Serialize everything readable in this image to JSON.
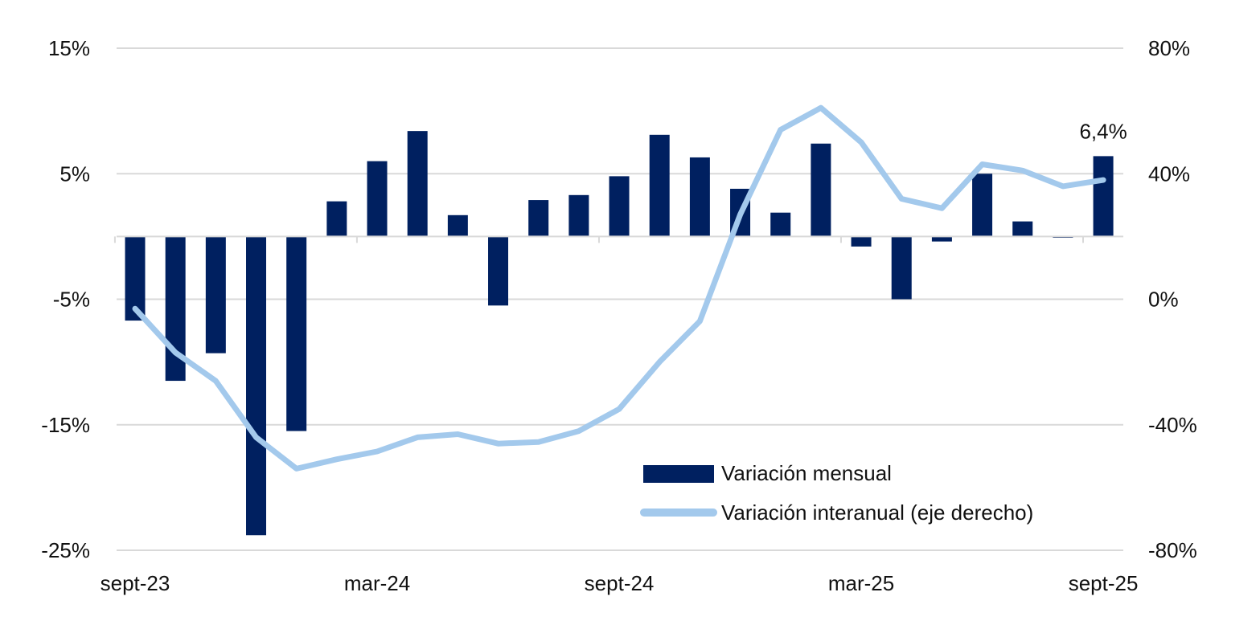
{
  "chart_data": {
    "type": "bar",
    "title": "",
    "xlabel": "",
    "ylabel": "",
    "y_left_ticks": [
      "15%",
      "5%",
      "-5%",
      "-15%",
      "-25%"
    ],
    "y_left_tick_values": [
      15,
      5,
      -5,
      -15,
      -25
    ],
    "y_left_range": [
      -25,
      15
    ],
    "y_right_ticks": [
      "80%",
      "40%",
      "0%",
      "-40%",
      "-80%"
    ],
    "y_right_tick_values": [
      80,
      40,
      0,
      -40,
      -80
    ],
    "y_right_range": [
      -80,
      80
    ],
    "x_tick_labels": [
      {
        "index": 0,
        "label": "sept-23"
      },
      {
        "index": 6,
        "label": "mar-24"
      },
      {
        "index": 12,
        "label": "sept-24"
      },
      {
        "index": 18,
        "label": "mar-25"
      },
      {
        "index": 24,
        "label": "sept-25"
      }
    ],
    "categories": [
      "sept-23",
      "oct-23",
      "nov-23",
      "dic-23",
      "ene-24",
      "feb-24",
      "mar-24",
      "abr-24",
      "may-24",
      "jun-24",
      "jul-24",
      "ago-24",
      "sept-24",
      "oct-24",
      "nov-24",
      "dic-24",
      "ene-25",
      "feb-25",
      "mar-25",
      "abr-25",
      "may-25",
      "jun-25",
      "jul-25",
      "ago-25",
      "sept-25"
    ],
    "series": [
      {
        "name": "Variación mensual",
        "kind": "bar",
        "axis": "left",
        "color": "#002060",
        "values": [
          -6.7,
          -11.5,
          -9.3,
          -23.8,
          -15.5,
          2.8,
          6.0,
          8.4,
          1.7,
          -5.5,
          2.9,
          3.3,
          4.8,
          8.1,
          6.3,
          3.8,
          1.9,
          7.4,
          -0.8,
          -5.0,
          -0.4,
          5.0,
          1.2,
          -0.1,
          6.4
        ]
      },
      {
        "name": "Variación interanual (eje derecho)",
        "kind": "line",
        "axis": "right",
        "color": "#A3C9EC",
        "values": [
          -3,
          -17,
          -26,
          -44,
          -54,
          -51,
          -48.5,
          -44,
          -43,
          -46,
          -45.5,
          -42,
          -35,
          -20,
          -7,
          27,
          54,
          61,
          50,
          32,
          29,
          43,
          41,
          36,
          38
        ]
      }
    ],
    "data_labels": [
      {
        "series": 0,
        "index": 24,
        "text": "6,4%"
      }
    ],
    "legend": {
      "position": "bottom-right",
      "items": [
        "Variación mensual",
        "Variación interanual (eje derecho)"
      ]
    },
    "grid": true
  }
}
